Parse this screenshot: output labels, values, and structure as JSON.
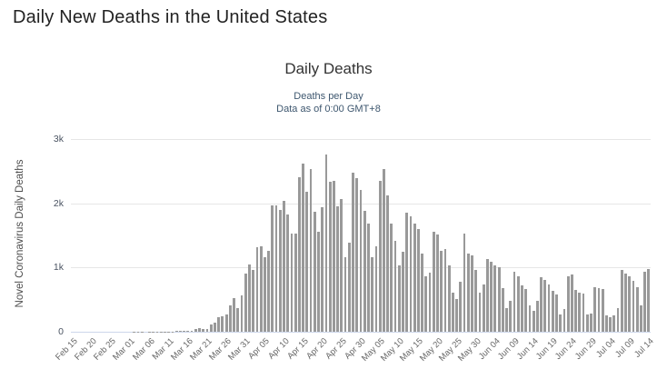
{
  "page": {
    "title": "Daily New Deaths in the United States"
  },
  "chart": {
    "title": "Daily Deaths",
    "subtitle_line1": "Deaths per Day",
    "subtitle_line2": "Data as of 0:00 GMT+8",
    "y_axis_title": "Novel Coronavirus Daily Deaths",
    "y_tick_labels": [
      "0",
      "1k",
      "2k",
      "3k"
    ],
    "colors": {
      "bar": "#999999",
      "grid": "#e6e6e6",
      "axis_line": "#ccd6eb",
      "x_tick_text": "#666666",
      "y_tick_text": "#4a5361",
      "subtitle_text": "#3E576F",
      "title_text": "#333333",
      "page_title_text": "#222222"
    }
  },
  "chart_data": {
    "type": "bar",
    "title": "Daily Deaths",
    "subtitle": "Deaths per Day — Data as of 0:00 GMT+8",
    "xlabel": "",
    "ylabel": "Novel Coronavirus Daily Deaths",
    "ylim": [
      0,
      3000
    ],
    "y_ticks": [
      0,
      1000,
      2000,
      3000
    ],
    "x_tick_step": 5,
    "grid": true,
    "legend": false,
    "bar_color": "#999999",
    "categories": [
      "Feb 15",
      "Feb 16",
      "Feb 17",
      "Feb 18",
      "Feb 19",
      "Feb 20",
      "Feb 21",
      "Feb 22",
      "Feb 23",
      "Feb 24",
      "Feb 25",
      "Feb 26",
      "Feb 27",
      "Feb 28",
      "Feb 29",
      "Mar 01",
      "Mar 02",
      "Mar 03",
      "Mar 04",
      "Mar 05",
      "Mar 06",
      "Mar 07",
      "Mar 08",
      "Mar 09",
      "Mar 10",
      "Mar 11",
      "Mar 12",
      "Mar 13",
      "Mar 14",
      "Mar 15",
      "Mar 16",
      "Mar 17",
      "Mar 18",
      "Mar 19",
      "Mar 20",
      "Mar 21",
      "Mar 22",
      "Mar 23",
      "Mar 24",
      "Mar 25",
      "Mar 26",
      "Mar 27",
      "Mar 28",
      "Mar 29",
      "Mar 30",
      "Mar 31",
      "Apr 01",
      "Apr 02",
      "Apr 03",
      "Apr 04",
      "Apr 05",
      "Apr 06",
      "Apr 07",
      "Apr 08",
      "Apr 09",
      "Apr 10",
      "Apr 11",
      "Apr 12",
      "Apr 13",
      "Apr 14",
      "Apr 15",
      "Apr 16",
      "Apr 17",
      "Apr 18",
      "Apr 19",
      "Apr 20",
      "Apr 21",
      "Apr 22",
      "Apr 23",
      "Apr 24",
      "Apr 25",
      "Apr 26",
      "Apr 27",
      "Apr 28",
      "Apr 29",
      "Apr 30",
      "May 01",
      "May 02",
      "May 03",
      "May 04",
      "May 05",
      "May 06",
      "May 07",
      "May 08",
      "May 09",
      "May 10",
      "May 11",
      "May 12",
      "May 13",
      "May 14",
      "May 15",
      "May 16",
      "May 17",
      "May 18",
      "May 19",
      "May 20",
      "May 21",
      "May 22",
      "May 23",
      "May 24",
      "May 25",
      "May 26",
      "May 27",
      "May 28",
      "May 29",
      "May 30",
      "May 31",
      "Jun 01",
      "Jun 02",
      "Jun 03",
      "Jun 04",
      "Jun 05",
      "Jun 06",
      "Jun 07",
      "Jun 08",
      "Jun 09",
      "Jun 10",
      "Jun 11",
      "Jun 12",
      "Jun 13",
      "Jun 14",
      "Jun 15",
      "Jun 16",
      "Jun 17",
      "Jun 18",
      "Jun 19",
      "Jun 20",
      "Jun 21",
      "Jun 22",
      "Jun 23",
      "Jun 24",
      "Jun 25",
      "Jun 26",
      "Jun 27",
      "Jun 28",
      "Jun 29",
      "Jun 30",
      "Jul 01",
      "Jul 02",
      "Jul 03",
      "Jul 04",
      "Jul 05",
      "Jul 06",
      "Jul 07",
      "Jul 08",
      "Jul 09",
      "Jul 10",
      "Jul 11",
      "Jul 12",
      "Jul 13",
      "Jul 14"
    ],
    "values": [
      0,
      0,
      0,
      0,
      0,
      0,
      0,
      0,
      0,
      0,
      0,
      0,
      0,
      0,
      1,
      1,
      5,
      2,
      3,
      1,
      3,
      4,
      3,
      4,
      4,
      7,
      3,
      9,
      10,
      12,
      17,
      21,
      41,
      56,
      49,
      46,
      111,
      140,
      222,
      247,
      268,
      410,
      522,
      363,
      572,
      909,
      1047,
      966,
      1320,
      1330,
      1164,
      1255,
      1970,
      1973,
      1900,
      2035,
      1830,
      1528,
      1535,
      2407,
      2621,
      2174,
      2538,
      1867,
      1561,
      1939,
      2760,
      2341,
      2352,
      1954,
      2065,
      1157,
      1384,
      2470,
      2390,
      2201,
      1883,
      1691,
      1154,
      1324,
      2350,
      2528,
      2129,
      1687,
      1422,
      1040,
      1240,
      1850,
      1800,
      1690,
      1595,
      1218,
      865,
      921,
      1552,
      1518,
      1263,
      1293,
      1036,
      605,
      505,
      774,
      1535,
      1223,
      1190,
      960,
      605,
      730,
      1134,
      1083,
      1031,
      1000,
      680,
      370,
      480,
      940,
      860,
      720,
      660,
      415,
      330,
      480,
      845,
      800,
      735,
      640,
      580,
      270,
      360,
      860,
      890,
      650,
      610,
      600,
      270,
      290,
      690,
      680,
      660,
      250,
      230,
      260,
      370,
      960,
      900,
      870,
      790,
      700,
      410,
      930,
      975
    ]
  }
}
